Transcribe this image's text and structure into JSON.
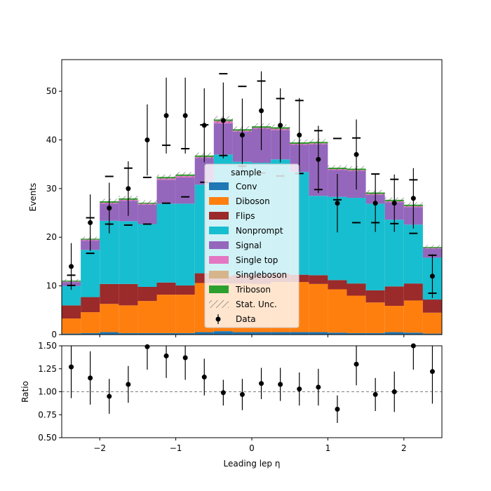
{
  "chart_data": [
    {
      "type": "bar",
      "subtype": "stacked-histogram-with-data-points",
      "xlim": [
        -2.5,
        2.5
      ],
      "ylim": [
        0,
        56.5
      ],
      "ylabel": "Events",
      "yticks": [
        0,
        10,
        20,
        30,
        40,
        50
      ],
      "bin_edges": [
        -2.5,
        -2.25,
        -2.0,
        -1.75,
        -1.5,
        -1.25,
        -1.0,
        -0.75,
        -0.5,
        -0.25,
        0.0,
        0.25,
        0.5,
        0.75,
        1.0,
        1.25,
        1.5,
        1.75,
        2.0,
        2.25,
        2.5
      ],
      "legend": {
        "title": "sample",
        "placement": "center"
      },
      "series": [
        {
          "name": "Conv",
          "color": "#1f77b4",
          "values": [
            0.2,
            0.3,
            0.5,
            0.3,
            0.3,
            0.3,
            0.3,
            0.5,
            0.7,
            0.5,
            0.5,
            0.5,
            0.5,
            0.5,
            0.4,
            0.3,
            0.3,
            0.5,
            0.4,
            0.2
          ]
        },
        {
          "name": "Diboson",
          "color": "#ff7f0e",
          "values": [
            3.1,
            4.3,
            5.8,
            5.7,
            6.6,
            7.9,
            7.9,
            10.1,
            9.8,
            10.0,
            9.9,
            10.3,
            10.3,
            9.9,
            8.9,
            7.7,
            6.3,
            5.4,
            6.6,
            4.3
          ]
        },
        {
          "name": "Flips",
          "color": "#9b2a2a",
          "values": [
            2.7,
            3.1,
            4.1,
            4.4,
            2.9,
            2.5,
            1.9,
            2.0,
            1.5,
            1.8,
            1.9,
            1.7,
            1.5,
            1.8,
            1.9,
            2.5,
            2.5,
            4.0,
            3.5,
            2.7
          ]
        },
        {
          "name": "Nonprompt",
          "color": "#17becf",
          "values": [
            4.0,
            9.7,
            13.0,
            12.9,
            12.9,
            16.2,
            16.8,
            18.2,
            25.0,
            23.2,
            23.0,
            23.5,
            21.1,
            16.3,
            17.1,
            17.6,
            17.8,
            13.7,
            12.1,
            8.6
          ]
        },
        {
          "name": "Signal",
          "color": "#9467bd",
          "values": [
            0.8,
            1.9,
            3.5,
            4.2,
            4.0,
            4.9,
            5.4,
            5.5,
            6.4,
            6.2,
            7.0,
            6.0,
            5.6,
            10.6,
            5.5,
            5.5,
            1.8,
            3.6,
            3.6,
            1.9
          ]
        },
        {
          "name": "Single top",
          "color": "#e377c2",
          "values": [
            0.1,
            0.2,
            0.2,
            0.2,
            0.2,
            0.3,
            0.3,
            0.2,
            0.5,
            0.2,
            0.2,
            0.3,
            0.2,
            0.2,
            0.2,
            0.2,
            0.2,
            0.2,
            0.2,
            0.1
          ]
        },
        {
          "name": "Singleboson",
          "color": "#d6b58a",
          "values": [
            0.0,
            0.0,
            0.0,
            0.0,
            0.0,
            0.0,
            0.0,
            0.0,
            0.0,
            0.0,
            0.0,
            0.0,
            0.0,
            0.0,
            0.0,
            0.0,
            0.0,
            0.0,
            0.0,
            0.0
          ]
        },
        {
          "name": "Triboson",
          "color": "#2ca02c",
          "values": [
            0.2,
            0.2,
            0.3,
            0.3,
            0.2,
            0.3,
            0.3,
            0.3,
            0.3,
            0.3,
            0.3,
            0.3,
            0.3,
            0.3,
            0.3,
            0.3,
            0.3,
            0.3,
            0.3,
            0.2
          ]
        },
        {
          "name": "Stat. Unc.",
          "style": "hatch",
          "color": "#555555",
          "values": [
            0.3,
            0.4,
            0.5,
            0.5,
            0.5,
            0.5,
            0.5,
            0.6,
            0.7,
            0.6,
            0.6,
            0.6,
            0.6,
            0.6,
            0.5,
            0.5,
            0.5,
            0.5,
            0.5,
            0.4
          ]
        },
        {
          "name": "Data",
          "style": "points",
          "color": "#000000",
          "values": [
            14,
            23,
            26,
            30,
            40,
            45,
            45,
            43,
            44,
            41,
            46,
            43,
            41,
            36,
            27,
            37,
            27,
            27,
            28,
            12
          ],
          "errors": [
            4.8,
            5.8,
            5.2,
            5.6,
            7.3,
            7.8,
            7.8,
            7.6,
            7.8,
            7.5,
            8.1,
            7.6,
            7.6,
            6.9,
            6.0,
            7.2,
            5.9,
            5.9,
            6.2,
            4.5
          ]
        }
      ],
      "up_markers": [
        12.2,
        24,
        32.5,
        34.2,
        32.3,
        38.9,
        38.2,
        43.1,
        53.6,
        51,
        52.1,
        48.5,
        48.1,
        41.9,
        40.3,
        40.4,
        33,
        31.9,
        31.8,
        16.3
      ],
      "down_markers": [
        10.1,
        16.7,
        22.7,
        22.5,
        22.7,
        27,
        28.3,
        31.3,
        36.8,
        34.6,
        33.2,
        32.6,
        33.1,
        29.8,
        27.7,
        23,
        23,
        22.8,
        20.8,
        8.5
      ]
    },
    {
      "type": "scatter",
      "xlabel": "Leading lep η",
      "ylabel": "Ratio",
      "xlim": [
        -2.5,
        2.5
      ],
      "ylim": [
        0.5,
        1.5
      ],
      "xticks": [
        -2,
        -1,
        0,
        1,
        2
      ],
      "xtick_labels": [
        "−2",
        "−1",
        "0",
        "1",
        "2"
      ],
      "yticks": [
        0.5,
        0.75,
        1.0,
        1.25,
        1.5
      ],
      "ytick_labels": [
        "0.50",
        "0.75",
        "1.00",
        "1.25",
        "1.50"
      ],
      "reference_line": 1.0,
      "x": [
        -2.375,
        -2.125,
        -1.875,
        -1.625,
        -1.375,
        -1.125,
        -0.875,
        -0.625,
        -0.375,
        -0.125,
        0.125,
        0.375,
        0.625,
        0.875,
        1.125,
        1.375,
        1.625,
        1.875,
        2.125,
        2.375
      ],
      "values": [
        1.27,
        1.15,
        0.95,
        1.08,
        1.49,
        1.39,
        1.37,
        1.16,
        0.99,
        0.97,
        1.09,
        1.08,
        1.03,
        1.05,
        0.81,
        1.3,
        0.97,
        1.0,
        1.5,
        1.22
      ],
      "errors": [
        0.34,
        0.29,
        0.19,
        0.2,
        0.25,
        0.24,
        0.24,
        0.2,
        0.14,
        0.17,
        0.17,
        0.18,
        0.18,
        0.2,
        0.15,
        0.23,
        0.18,
        0.22,
        0.26,
        0.35
      ]
    }
  ]
}
